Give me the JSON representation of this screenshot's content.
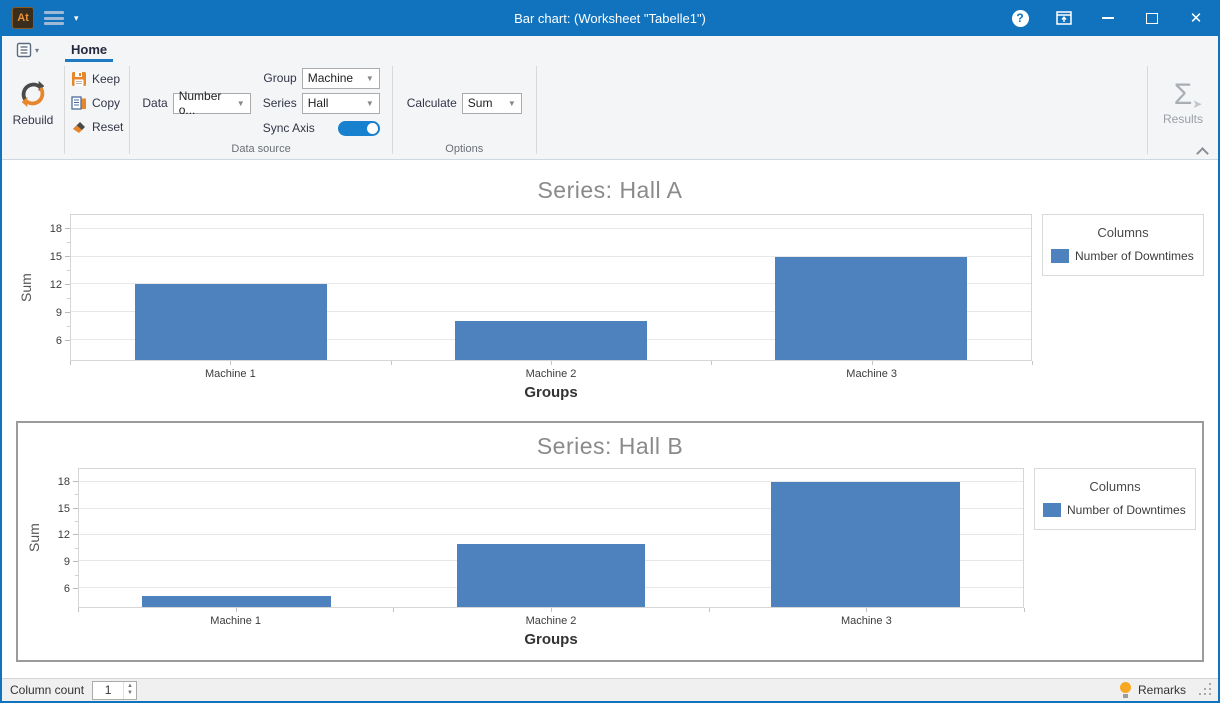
{
  "titlebar": {
    "app_glyph": "At",
    "title": "Bar chart:  (Worksheet \"Tabelle1\")"
  },
  "ribbon": {
    "tab": "Home",
    "rebuild_label": "Rebuild",
    "keep_label": "Keep",
    "copy_label": "Copy",
    "reset_label": "Reset",
    "data_label": "Data",
    "data_value": "Number o...",
    "group_label": "Group",
    "group_value": "Machine",
    "series_label": "Series",
    "series_value": "Hall",
    "sync_axis_label": "Sync Axis",
    "calculate_label": "Calculate",
    "calculate_value": "Sum",
    "results_label": "Results",
    "group_data_source": "Data source",
    "group_options": "Options"
  },
  "chart_data": [
    {
      "type": "bar",
      "title": "Series: Hall A",
      "categories": [
        "Machine 1",
        "Machine 2",
        "Machine 3"
      ],
      "values": [
        12,
        8,
        15
      ],
      "series_name": "Number of Downtimes",
      "xlabel": "Groups",
      "ylabel": "Sum",
      "yticks": [
        6,
        9,
        12,
        15,
        18
      ],
      "ylim": [
        3.8,
        19.5
      ],
      "grid": true,
      "legend_position": "right",
      "legend_title": "Columns",
      "bar_color": "#4d82be"
    },
    {
      "type": "bar",
      "title": "Series: Hall B",
      "categories": [
        "Machine 1",
        "Machine 2",
        "Machine 3"
      ],
      "values": [
        5,
        11,
        18
      ],
      "series_name": "Number of Downtimes",
      "xlabel": "Groups",
      "ylabel": "Sum",
      "yticks": [
        6,
        9,
        12,
        15,
        18
      ],
      "ylim": [
        3.8,
        19.5
      ],
      "grid": true,
      "legend_position": "right",
      "legend_title": "Columns",
      "bar_color": "#4d82be"
    }
  ],
  "statusbar": {
    "column_count_label": "Column count",
    "column_count_value": "1",
    "remarks_label": "Remarks"
  },
  "colors": {
    "titlebar": "#1173bd",
    "tab_underline": "#1e7ac2",
    "bar": "#4d82be"
  }
}
